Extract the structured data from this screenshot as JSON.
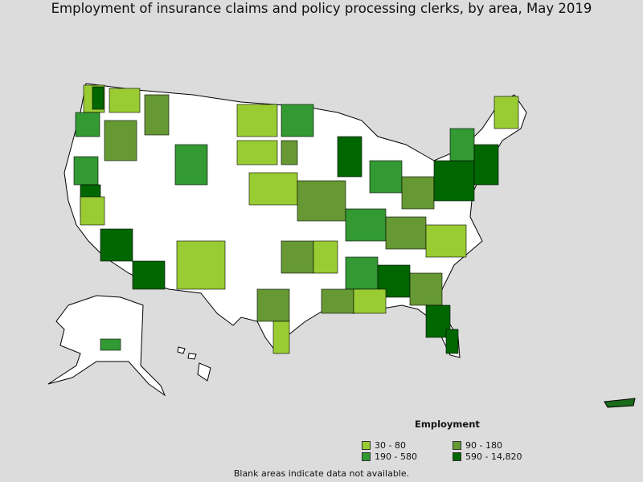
{
  "title": "Employment of insurance claims and policy processing clerks, by area, May 2019",
  "legend": {
    "title": "Employment",
    "items": [
      {
        "label": "30 - 80",
        "color": "#99cc33"
      },
      {
        "label": "90 - 180",
        "color": "#669933"
      },
      {
        "label": "190 - 580",
        "color": "#339933"
      },
      {
        "label": "590 - 14,820",
        "color": "#006600"
      }
    ]
  },
  "note": "Blank areas indicate data not available.",
  "colors": {
    "background": "#dcdcdc",
    "land": "#ffffff",
    "border": "#000000"
  }
}
